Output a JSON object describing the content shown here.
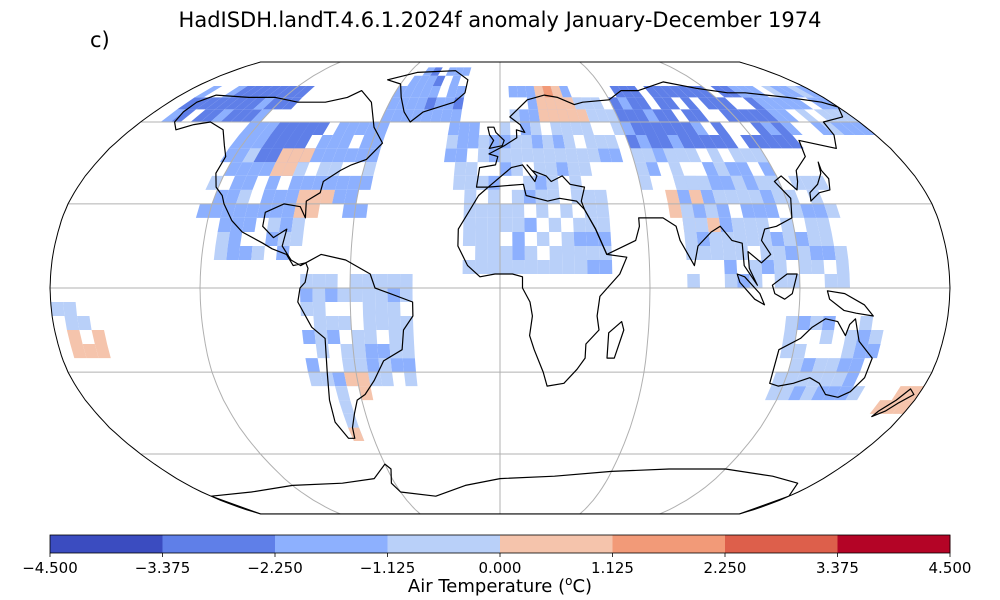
{
  "title": "HadISDH.landT.4.6.1.2024f anomaly January-December 1974",
  "panel_label": "c)",
  "projection": "Robinson",
  "colorbar": {
    "label_prefix": "Air Temperature (",
    "label_unit_sup": "o",
    "label_suffix": "C)",
    "ticks": [
      "−4.500",
      "−3.375",
      "−2.250",
      "−1.125",
      "0.000",
      "1.125",
      "2.250",
      "3.375",
      "4.500"
    ],
    "bins": [
      {
        "min": -4.5,
        "max": -3.375,
        "color": "#3b4cc0"
      },
      {
        "min": -3.375,
        "max": -2.25,
        "color": "#5f7fe8"
      },
      {
        "min": -2.25,
        "max": -1.125,
        "color": "#8db0fe"
      },
      {
        "min": -1.125,
        "max": 0.0,
        "color": "#b9d0f9"
      },
      {
        "min": 0.0,
        "max": 1.125,
        "color": "#f5c4ac"
      },
      {
        "min": 1.125,
        "max": 2.25,
        "color": "#f29a78"
      },
      {
        "min": 2.25,
        "max": 3.375,
        "color": "#dd5f4b"
      },
      {
        "min": 3.375,
        "max": 4.5,
        "color": "#b40426"
      }
    ]
  },
  "gridlines": {
    "lons": [
      -120,
      -60,
      0,
      60,
      120
    ],
    "lats": [
      -60,
      -30,
      0,
      30,
      60
    ]
  },
  "anomaly_regions": [
    {
      "lon": [
        -170,
        -110
      ],
      "lat": [
        60,
        75
      ],
      "value": -2.5
    },
    {
      "lon": [
        -125,
        -55
      ],
      "lat": [
        25,
        60
      ],
      "value": -1.5
    },
    {
      "lon": [
        -110,
        -85
      ],
      "lat": [
        45,
        60
      ],
      "value": -2.8
    },
    {
      "lon": [
        -100,
        -85
      ],
      "lat": [
        40,
        50
      ],
      "value": 0.5
    },
    {
      "lon": [
        -85,
        -70
      ],
      "lat": [
        25,
        35
      ],
      "value": 0.6
    },
    {
      "lon": [
        -115,
        -80
      ],
      "lat": [
        10,
        25
      ],
      "value": -1.2
    },
    {
      "lon": [
        -80,
        -35
      ],
      "lat": [
        -35,
        5
      ],
      "value": -0.8
    },
    {
      "lon": [
        -75,
        -65
      ],
      "lat": [
        -55,
        -35
      ],
      "value": -0.8
    },
    {
      "lon": [
        -65,
        -55
      ],
      "lat": [
        -40,
        -30
      ],
      "value": 0.5
    },
    {
      "lon": [
        -70,
        -65
      ],
      "lat": [
        -55,
        -50
      ],
      "value": 0.6
    },
    {
      "lon": [
        -60,
        -20
      ],
      "lat": [
        60,
        83
      ],
      "value": -2.0
    },
    {
      "lon": [
        -25,
        40
      ],
      "lat": [
        35,
        60
      ],
      "value": -1.0
    },
    {
      "lon": [
        5,
        40
      ],
      "lat": [
        60,
        72
      ],
      "value": -1.5
    },
    {
      "lon": [
        20,
        45
      ],
      "lat": [
        60,
        72
      ],
      "value": 0.7
    },
    {
      "lon": [
        40,
        80
      ],
      "lat": [
        45,
        70
      ],
      "value": -1.0
    },
    {
      "lon": [
        60,
        140
      ],
      "lat": [
        50,
        75
      ],
      "value": -2.6
    },
    {
      "lon": [
        140,
        180
      ],
      "lat": [
        55,
        72
      ],
      "value": -1.4
    },
    {
      "lon": [
        60,
        120
      ],
      "lat": [
        35,
        50
      ],
      "value": -1.0
    },
    {
      "lon": [
        70,
        90
      ],
      "lat": [
        20,
        32
      ],
      "value": 0.6
    },
    {
      "lon": [
        75,
        140
      ],
      "lat": [
        0,
        40
      ],
      "value": -0.9
    },
    {
      "lon": [
        -15,
        45
      ],
      "lat": [
        5,
        35
      ],
      "value": -0.9
    },
    {
      "lon": [
        115,
        155
      ],
      "lat": [
        -40,
        -12
      ],
      "value": -0.9
    },
    {
      "lon": [
        165,
        178
      ],
      "lat": [
        -45,
        -35
      ],
      "value": 0.5
    },
    {
      "lon": [
        -175,
        -160
      ],
      "lat": [
        -25,
        -15
      ],
      "value": 0.5
    },
    {
      "lon": [
        -180,
        -165
      ],
      "lat": [
        -15,
        -5
      ],
      "value": -0.6
    }
  ]
}
